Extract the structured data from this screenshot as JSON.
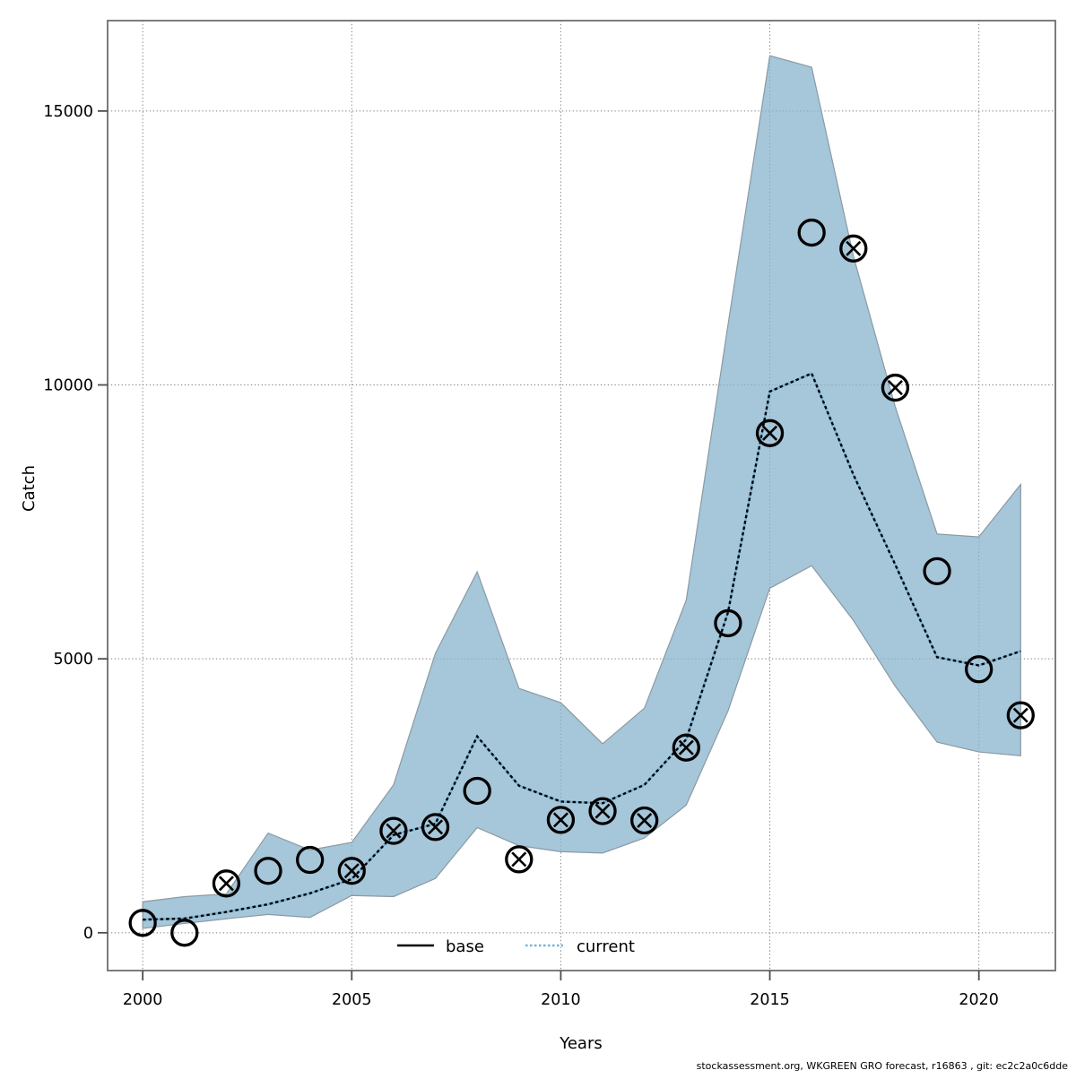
{
  "figure": {
    "xlabel": "Years",
    "ylabel": "Catch",
    "caption": "stockassessment.org, WKGREEN GRO forecast, r16863 , git: ec2c2a0c6dde",
    "legend": [
      {
        "label": "base",
        "symbol": "solid-black-line"
      },
      {
        "label": "current",
        "symbol": "dotted-blue-line"
      }
    ]
  },
  "colors": {
    "band_fill_rgba": "rgba(136,179,204,0.75)",
    "band_edge": "#8a9aa4",
    "current_line_blue": "#74b2d8",
    "current_line_dash": "#000000",
    "marker_stroke": "#000000",
    "grid": "#7d7d7d",
    "panel_border": "#6e6e6e",
    "tick": "#4d4d4d"
  },
  "chart_data": {
    "type": "line",
    "title": "",
    "xlabel": "Years",
    "ylabel": "Catch",
    "grid": true,
    "legend_position": "bottom-center-inside",
    "xlim": [
      1999.16,
      2021.83
    ],
    "ylim": [
      -690,
      16650
    ],
    "x_ticks": [
      2000,
      2005,
      2010,
      2015,
      2020
    ],
    "x_tick_labels": [
      "2000",
      "2005",
      "2010",
      "2015",
      "2020"
    ],
    "y_ticks": [
      0,
      5000,
      10000,
      15000
    ],
    "y_tick_labels": [
      "0",
      "5000",
      "10000",
      "15000"
    ],
    "x": [
      2000,
      2001,
      2002,
      2003,
      2004,
      2005,
      2006,
      2007,
      2008,
      2009,
      2010,
      2011,
      2012,
      2013,
      2014,
      2015,
      2016,
      2017,
      2018,
      2019,
      2020,
      2021
    ],
    "series": [
      {
        "name": "base",
        "kind": "markers",
        "marker": "open-circle",
        "values": [
          180,
          0,
          null,
          1130,
          1330,
          null,
          null,
          null,
          2590,
          null,
          null,
          null,
          null,
          null,
          5650,
          null,
          12780,
          null,
          null,
          6600,
          4810,
          null
        ]
      },
      {
        "name": "current",
        "kind": "markers",
        "marker": "circle-cross",
        "values": [
          null,
          null,
          900,
          null,
          null,
          1130,
          1860,
          1930,
          null,
          1340,
          2060,
          2220,
          2050,
          3380,
          null,
          9120,
          null,
          12490,
          9950,
          null,
          null,
          3970
        ]
      },
      {
        "name": "current_forecast_line",
        "kind": "dotted-line",
        "values": [
          240,
          260,
          380,
          520,
          720,
          980,
          1785,
          1990,
          3585,
          2685,
          2395,
          2365,
          2700,
          3530,
          5850,
          9880,
          10210,
          8360,
          6720,
          5030,
          4880,
          5140
        ]
      }
    ],
    "band": {
      "name": "current_confidence_interval",
      "lo": [
        80,
        170,
        255,
        335,
        280,
        680,
        660,
        990,
        1920,
        1590,
        1480,
        1455,
        1730,
        2330,
        4050,
        6290,
        6700,
        5700,
        4500,
        3480,
        3300,
        3230
      ],
      "hi": [
        565,
        660,
        710,
        1820,
        1510,
        1650,
        2700,
        5100,
        6590,
        4460,
        4200,
        3450,
        4100,
        6070,
        11100,
        16010,
        15800,
        12350,
        9600,
        7280,
        7225,
        8185
      ]
    }
  }
}
